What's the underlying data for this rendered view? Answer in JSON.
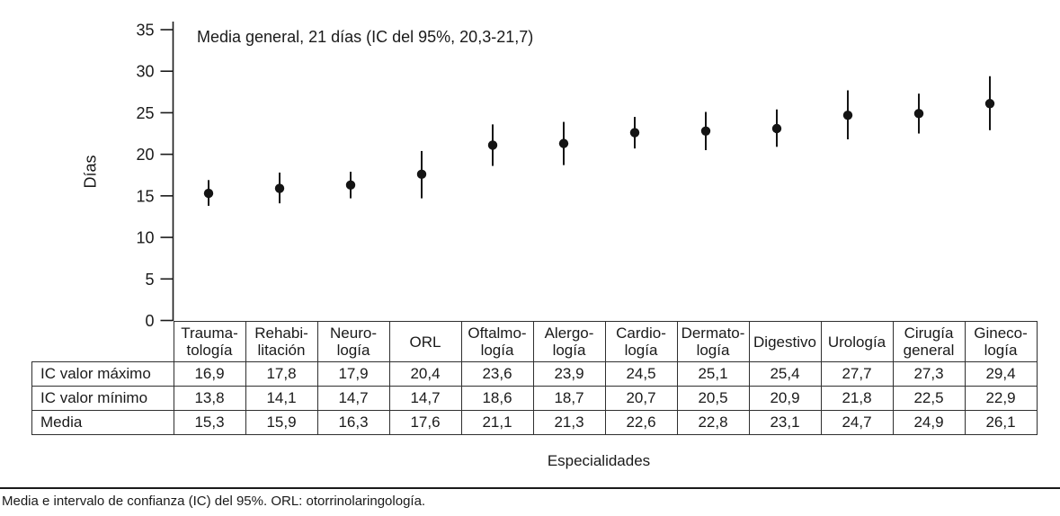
{
  "chart": {
    "annotation": "Media general, 21 días (IC del 95%, 20,3-21,7)",
    "ylabel": "Días",
    "xlabel": "Especialidades"
  },
  "footnote": "Media e intervalo de confianza (IC) del 95%. ORL: otorrinolaringología.",
  "chart_data": {
    "type": "scatter",
    "title": "Media general, 21 días (IC del 95%, 20,3-21,7)",
    "xlabel": "Especialidades",
    "ylabel": "Días",
    "ylim": [
      0,
      35
    ],
    "yticks": [
      0,
      5,
      10,
      15,
      20,
      25,
      30,
      35
    ],
    "grid": false,
    "legend": "none",
    "marker": "filled-circle-with-vertical-ci-line",
    "categories": [
      "Traumatología",
      "Rehabilitación",
      "Neurología",
      "ORL",
      "Oftalmología",
      "Alergología",
      "Cardiología",
      "Dermatología",
      "Digestivo",
      "Urología",
      "Cirugía general",
      "Ginecología"
    ],
    "series": [
      {
        "name": "IC valor máximo",
        "values": [
          16.9,
          17.8,
          17.9,
          20.4,
          23.6,
          23.9,
          24.5,
          25.1,
          25.4,
          27.7,
          27.3,
          29.4
        ]
      },
      {
        "name": "IC valor mínimo",
        "values": [
          13.8,
          14.1,
          14.7,
          14.7,
          18.6,
          18.7,
          20.7,
          20.5,
          20.9,
          21.8,
          22.5,
          22.9
        ]
      },
      {
        "name": "Media",
        "values": [
          15.3,
          15.9,
          16.3,
          17.6,
          21.1,
          21.3,
          22.6,
          22.8,
          23.1,
          24.7,
          24.9,
          26.1
        ]
      }
    ]
  },
  "table": {
    "col_headers": [
      "Trauma-\ntología",
      "Rehabi-\nlitación",
      "Neuro-\nlogía",
      "ORL",
      "Oftalmo-\nlogía",
      "Alergo-\nlogía",
      "Cardio-\nlogía",
      "Dermato-\nlogía",
      "Digestivo",
      "Urología",
      "Cirugía\ngeneral",
      "Gineco-\nlogía"
    ],
    "rows": [
      {
        "label": "IC valor máximo",
        "values": [
          "16,9",
          "17,8",
          "17,9",
          "20,4",
          "23,6",
          "23,9",
          "24,5",
          "25,1",
          "25,4",
          "27,7",
          "27,3",
          "29,4"
        ]
      },
      {
        "label": "IC valor mínimo",
        "values": [
          "13,8",
          "14,1",
          "14,7",
          "14,7",
          "18,6",
          "18,7",
          "20,7",
          "20,5",
          "20,9",
          "21,8",
          "22,5",
          "22,9"
        ]
      },
      {
        "label": "Media",
        "values": [
          "15,3",
          "15,9",
          "16,3",
          "17,6",
          "21,1",
          "21,3",
          "22,6",
          "22,8",
          "23,1",
          "24,7",
          "24,9",
          "26,1"
        ]
      }
    ]
  },
  "colors": {
    "ink": "#1a1a1a",
    "dot": "#141414",
    "background": "#ffffff"
  }
}
